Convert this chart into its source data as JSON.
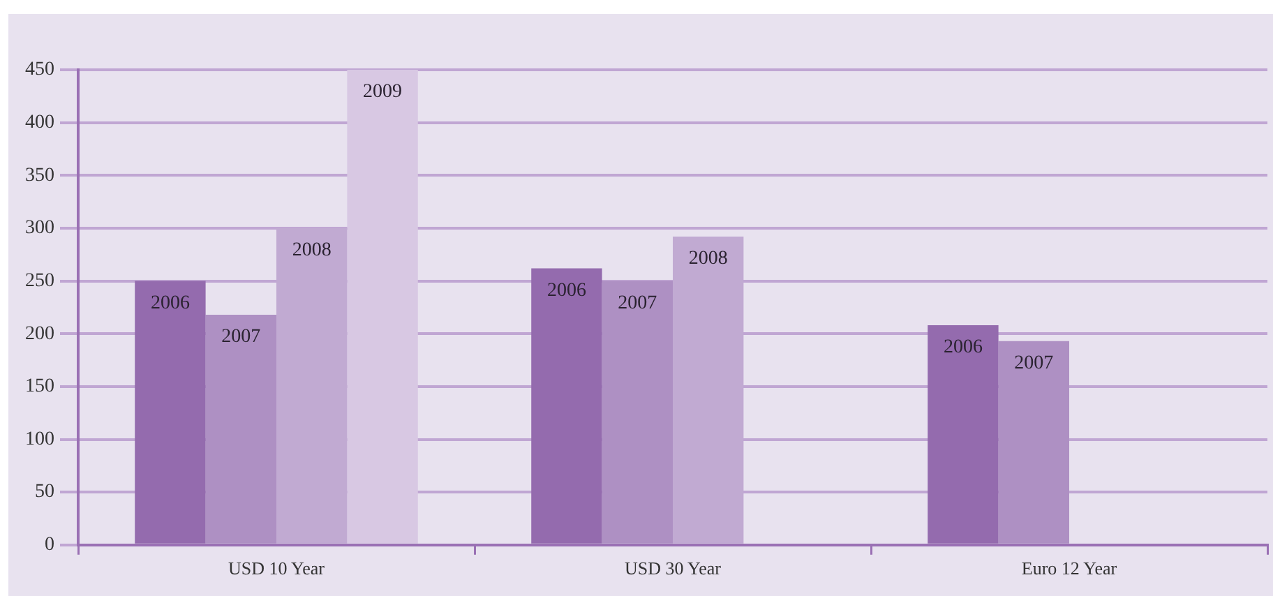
{
  "chart_data": {
    "type": "bar",
    "categories": [
      "USD 10 Year",
      "USD 30 Year",
      "Euro 12 Year"
    ],
    "series": [
      {
        "name": "2006",
        "color": "#946bae",
        "values": [
          250,
          262,
          208
        ]
      },
      {
        "name": "2007",
        "color": "#ae90c3",
        "values": [
          218,
          250,
          193
        ]
      },
      {
        "name": "2008",
        "color": "#c1aad2",
        "values": [
          300,
          292,
          null
        ]
      },
      {
        "name": "2009",
        "color": "#d8c8e3",
        "values": [
          450,
          null,
          null
        ]
      }
    ],
    "ylim": [
      0,
      450
    ],
    "yticks": [
      0,
      50,
      100,
      150,
      200,
      250,
      300,
      350,
      400,
      450
    ],
    "grid": "y",
    "legend": false
  }
}
